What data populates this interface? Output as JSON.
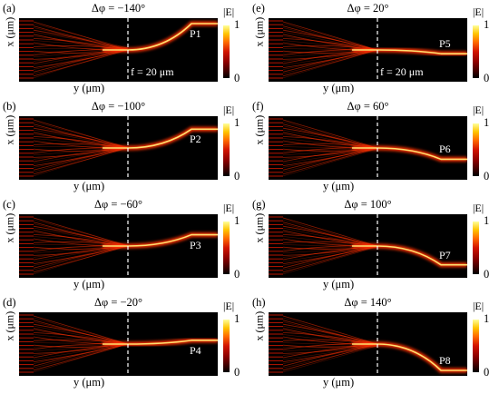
{
  "figure": {
    "panels": [
      {
        "label": "(a)",
        "title": "Δφ = −140°",
        "port": "P1",
        "x_label": "x (μm)",
        "y_label": "y (μm)",
        "colorbar_title": "|E|",
        "colorbar_max": "1",
        "colorbar_min": "0",
        "focal_note": "f = 20 μm",
        "phase_deg": -140
      },
      {
        "label": "(b)",
        "title": "Δφ = −100°",
        "port": "P2",
        "x_label": "x (μm)",
        "y_label": "y (μm)",
        "colorbar_title": "|E|",
        "colorbar_max": "1",
        "colorbar_min": "0",
        "focal_note": "",
        "phase_deg": -100
      },
      {
        "label": "(c)",
        "title": "Δφ = −60°",
        "port": "P3",
        "x_label": "x (μm)",
        "y_label": "y (μm)",
        "colorbar_title": "|E|",
        "colorbar_max": "1",
        "colorbar_min": "0",
        "focal_note": "",
        "phase_deg": -60
      },
      {
        "label": "(d)",
        "title": "Δφ = −20°",
        "port": "P4",
        "x_label": "x (μm)",
        "y_label": "y (μm)",
        "colorbar_title": "|E|",
        "colorbar_max": "1",
        "colorbar_min": "0",
        "focal_note": "",
        "phase_deg": -20
      },
      {
        "label": "(e)",
        "title": "Δφ = 20°",
        "port": "P5",
        "x_label": "x (μm)",
        "y_label": "y (μm)",
        "colorbar_title": "|E|",
        "colorbar_max": "1",
        "colorbar_min": "0",
        "focal_note": "f = 20 μm",
        "phase_deg": 20
      },
      {
        "label": "(f)",
        "title": "Δφ = 60°",
        "port": "P6",
        "x_label": "x (μm)",
        "y_label": "y (μm)",
        "colorbar_title": "|E|",
        "colorbar_max": "1",
        "colorbar_min": "0",
        "focal_note": "",
        "phase_deg": 60
      },
      {
        "label": "(g)",
        "title": "Δφ = 100°",
        "port": "P7",
        "x_label": "x (μm)",
        "y_label": "y (μm)",
        "colorbar_title": "|E|",
        "colorbar_max": "1",
        "colorbar_min": "0",
        "focal_note": "",
        "phase_deg": 100
      },
      {
        "label": "(h)",
        "title": "Δφ = 140°",
        "port": "P8",
        "x_label": "x (μm)",
        "y_label": "y (μm)",
        "colorbar_title": "|E|",
        "colorbar_max": "1",
        "colorbar_min": "0",
        "focal_note": "",
        "phase_deg": 140
      }
    ],
    "colors": {
      "background": "#000000",
      "beam_core": "#ffe070",
      "beam_glow": "#ff3000",
      "waveguide": "#b81400",
      "focal_line": "#ffffff"
    }
  }
}
